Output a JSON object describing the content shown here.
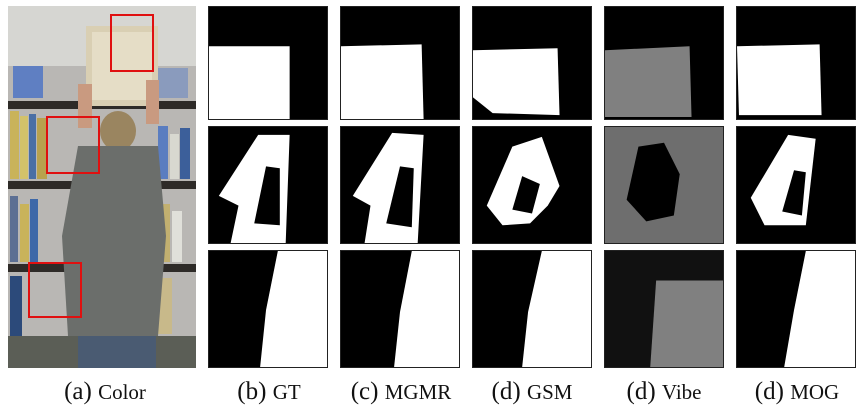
{
  "captions": [
    {
      "prefix": "(a)",
      "label": "Color"
    },
    {
      "prefix": "(b)",
      "label": "GT"
    },
    {
      "prefix": "(c)",
      "label": "MGMR"
    },
    {
      "prefix": "(d)",
      "label": "GSM"
    },
    {
      "prefix": "(d)",
      "label": "Vibe"
    },
    {
      "prefix": "(d)",
      "label": "MOG"
    }
  ],
  "colors": {
    "roi_box": "#e01010",
    "foreground": "#ffffff",
    "background": "#000000",
    "vibe_foreground": "#808080"
  }
}
